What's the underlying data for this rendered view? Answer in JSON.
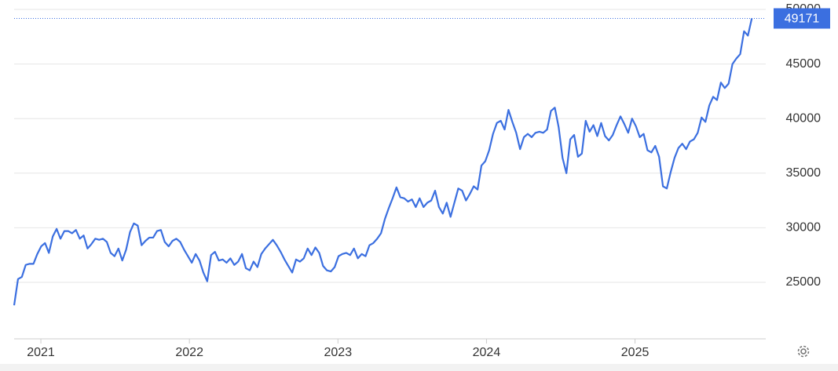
{
  "chart_data": {
    "type": "line",
    "color": "#3b6fe0",
    "grid": true,
    "xlim": [
      2020.82,
      2025.88
    ],
    "xticks": [
      2021,
      2022,
      2023,
      2024,
      2025
    ],
    "ylim": [
      19830,
      50860
    ],
    "yticks": [
      25000,
      30000,
      35000,
      40000,
      45000,
      50000
    ],
    "x": [
      2020.82,
      2020.846,
      2020.872,
      2020.898,
      2020.924,
      2020.95,
      2020.976,
      2021.002,
      2021.028,
      2021.054,
      2021.08,
      2021.106,
      2021.132,
      2021.158,
      2021.184,
      2021.21,
      2021.236,
      2021.262,
      2021.288,
      2021.314,
      2021.34,
      2021.366,
      2021.392,
      2021.418,
      2021.444,
      2021.47,
      2021.496,
      2021.522,
      2021.548,
      2021.574,
      2021.6,
      2021.626,
      2021.652,
      2021.678,
      2021.704,
      2021.73,
      2021.756,
      2021.782,
      2021.808,
      2021.834,
      2021.86,
      2021.886,
      2021.912,
      2021.938,
      2021.964,
      2021.99,
      2022.016,
      2022.042,
      2022.068,
      2022.094,
      2022.12,
      2022.146,
      2022.172,
      2022.198,
      2022.224,
      2022.25,
      2022.276,
      2022.302,
      2022.328,
      2022.354,
      2022.38,
      2022.406,
      2022.432,
      2022.458,
      2022.484,
      2022.51,
      2022.536,
      2022.562,
      2022.588,
      2022.614,
      2022.64,
      2022.666,
      2022.692,
      2022.718,
      2022.744,
      2022.77,
      2022.796,
      2022.822,
      2022.848,
      2022.874,
      2022.9,
      2022.926,
      2022.952,
      2022.978,
      2023.004,
      2023.03,
      2023.056,
      2023.082,
      2023.108,
      2023.134,
      2023.16,
      2023.186,
      2023.212,
      2023.238,
      2023.264,
      2023.29,
      2023.316,
      2023.342,
      2023.368,
      2023.394,
      2023.42,
      2023.446,
      2023.472,
      2023.498,
      2023.524,
      2023.55,
      2023.576,
      2023.602,
      2023.628,
      2023.654,
      2023.68,
      2023.706,
      2023.732,
      2023.758,
      2023.784,
      2023.81,
      2023.836,
      2023.862,
      2023.888,
      2023.914,
      2023.94,
      2023.966,
      2023.992,
      2024.018,
      2024.044,
      2024.07,
      2024.096,
      2024.122,
      2024.148,
      2024.174,
      2024.2,
      2024.226,
      2024.252,
      2024.278,
      2024.304,
      2024.33,
      2024.356,
      2024.382,
      2024.408,
      2024.434,
      2024.46,
      2024.486,
      2024.512,
      2024.538,
      2024.564,
      2024.59,
      2024.616,
      2024.642,
      2024.668,
      2024.694,
      2024.72,
      2024.746,
      2024.772,
      2024.798,
      2024.824,
      2024.85,
      2024.876,
      2024.902,
      2024.928,
      2024.954,
      2024.98,
      2025.006,
      2025.032,
      2025.058,
      2025.084,
      2025.11,
      2025.136,
      2025.162,
      2025.188,
      2025.214,
      2025.24,
      2025.266,
      2025.292,
      2025.318,
      2025.344,
      2025.37,
      2025.396,
      2025.422,
      2025.448,
      2025.474,
      2025.5,
      2025.526,
      2025.552,
      2025.578,
      2025.604,
      2025.63,
      2025.656,
      2025.682,
      2025.708,
      2025.734,
      2025.76,
      2025.786
    ],
    "values": [
      22900,
      25300,
      25500,
      26600,
      26700,
      26700,
      27600,
      28300,
      28600,
      27700,
      29200,
      29900,
      29000,
      29700,
      29700,
      29500,
      29800,
      29000,
      29300,
      28100,
      28500,
      29000,
      28900,
      29000,
      28700,
      27700,
      27400,
      28100,
      27000,
      28000,
      29600,
      30400,
      30200,
      28400,
      28800,
      29100,
      29100,
      29700,
      29800,
      28700,
      28300,
      28800,
      29000,
      28700,
      28000,
      27400,
      26800,
      27600,
      27000,
      25900,
      25100,
      27500,
      27800,
      27000,
      27100,
      26800,
      27200,
      26600,
      26900,
      27600,
      26300,
      26100,
      26900,
      26400,
      27600,
      28100,
      28500,
      28900,
      28400,
      27800,
      27100,
      26500,
      25900,
      27100,
      26900,
      27200,
      28100,
      27500,
      28200,
      27700,
      26500,
      26100,
      26000,
      26400,
      27400,
      27600,
      27700,
      27500,
      28100,
      27200,
      27600,
      27400,
      28400,
      28600,
      29000,
      29500,
      30800,
      31800,
      32700,
      33700,
      32800,
      32700,
      32400,
      32600,
      31900,
      32700,
      31900,
      32300,
      32500,
      33400,
      31900,
      31300,
      32300,
      31000,
      32300,
      33600,
      33400,
      32500,
      33100,
      33800,
      33500,
      35700,
      36100,
      37100,
      38600,
      39600,
      39800,
      39000,
      40800,
      39700,
      38700,
      37200,
      38300,
      38600,
      38300,
      38700,
      38800,
      38700,
      39000,
      40700,
      41000,
      39200,
      36400,
      35000,
      38100,
      38500,
      36500,
      36800,
      39800,
      38800,
      39400,
      38400,
      39600,
      38400,
      38000,
      38500,
      39400,
      40200,
      39500,
      38700,
      40000,
      39300,
      38300,
      38600,
      37100,
      36900,
      37500,
      36500,
      33800,
      33600,
      35100,
      36400,
      37300,
      37700,
      37200,
      37900,
      38100,
      38700,
      40100,
      39700,
      41200,
      42000,
      41700,
      43300,
      42800,
      43200,
      45000,
      45500,
      45900,
      48000,
      47600,
      49171
    ]
  }
}
